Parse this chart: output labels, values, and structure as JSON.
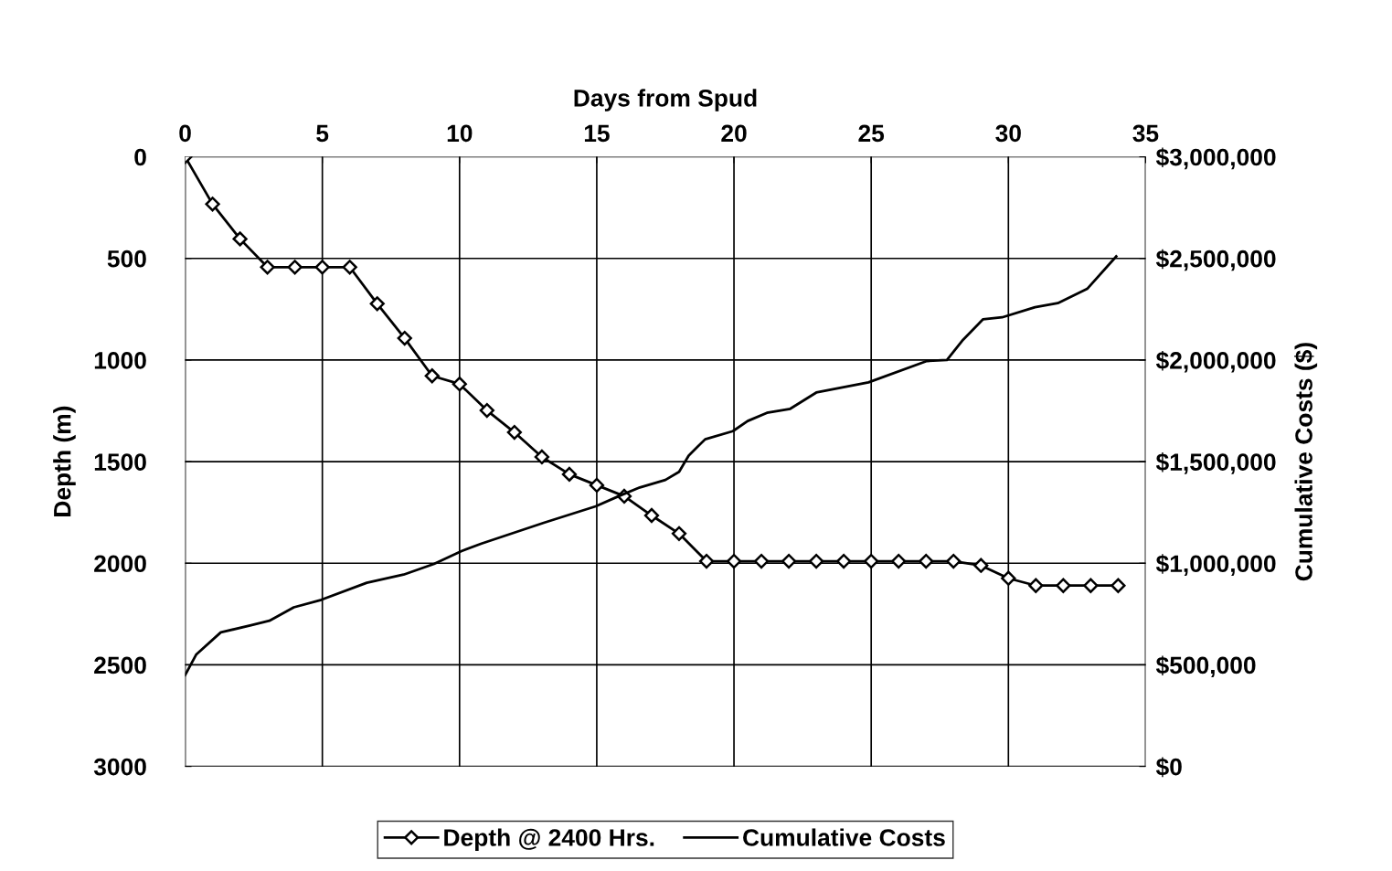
{
  "chart_data": {
    "type": "line",
    "xlabel": "Days from Spud",
    "ylabel": "Depth (m)",
    "y2label": "Cumulative Costs ($)",
    "xlim": [
      0,
      35
    ],
    "xticks": [
      0,
      5,
      10,
      15,
      20,
      25,
      30,
      35
    ],
    "ylim": [
      3000,
      0
    ],
    "yticks": [
      0,
      500,
      1000,
      1500,
      2000,
      2500,
      3000
    ],
    "y2lim": [
      0,
      3000000
    ],
    "y2ticks": [
      {
        "value": 0,
        "label": "$0"
      },
      {
        "value": 500000,
        "label": "$500,000"
      },
      {
        "value": 1000000,
        "label": "$1,000,000"
      },
      {
        "value": 1500000,
        "label": "$1,500,000"
      },
      {
        "value": 2000000,
        "label": "$2,000,000"
      },
      {
        "value": 2500000,
        "label": "$2,500,000"
      },
      {
        "value": 3000000,
        "label": "$3,000,000"
      }
    ],
    "grid": true,
    "legend": "bottom",
    "series": [
      {
        "name": "Depth @ 2400 Hrs.",
        "color": "#000000",
        "marker": "diamond",
        "x": [
          0,
          1,
          2,
          3,
          4,
          5,
          6,
          7,
          8,
          9,
          10,
          11,
          12,
          13,
          14,
          15,
          16,
          17,
          18,
          19,
          20,
          21,
          22,
          23,
          24,
          25,
          26,
          27,
          28,
          29,
          30,
          31,
          32,
          33,
          34
        ],
        "values": [
          0,
          233,
          404,
          543,
          543,
          543,
          543,
          723,
          893,
          1078,
          1118,
          1248,
          1356,
          1477,
          1562,
          1616,
          1670,
          1765,
          1854,
          1990,
          1990,
          1990,
          1990,
          1990,
          1990,
          1990,
          1990,
          1990,
          1990,
          2011,
          2074,
          2110,
          2110,
          2110,
          2110
        ]
      },
      {
        "name": "Cumulative Costs",
        "color": "#000000",
        "marker": "none",
        "axis": "y2",
        "x": [
          0,
          0.4,
          1.3,
          2.4,
          3.07,
          3.96,
          4.96,
          6.62,
          7.96,
          9.07,
          10.07,
          10.8,
          13.07,
          14.96,
          15.8,
          16.57,
          17.5,
          18.0,
          18.35,
          18.95,
          19.96,
          20.5,
          21.2,
          22.05,
          23.0,
          24.9,
          27.03,
          27.76,
          28.35,
          29.07,
          29.77,
          30.97,
          31.8,
          32.87,
          33.93
        ],
        "values": [
          450000,
          550000,
          660000,
          695000,
          717000,
          783000,
          820000,
          904000,
          944000,
          997000,
          1060000,
          1097000,
          1199000,
          1280000,
          1330000,
          1373000,
          1410000,
          1450000,
          1530000,
          1610000,
          1650000,
          1700000,
          1740000,
          1760000,
          1840000,
          1890000,
          1995000,
          2000000,
          2100000,
          2200000,
          2210000,
          2260000,
          2280000,
          2350000,
          2510000
        ]
      }
    ]
  }
}
